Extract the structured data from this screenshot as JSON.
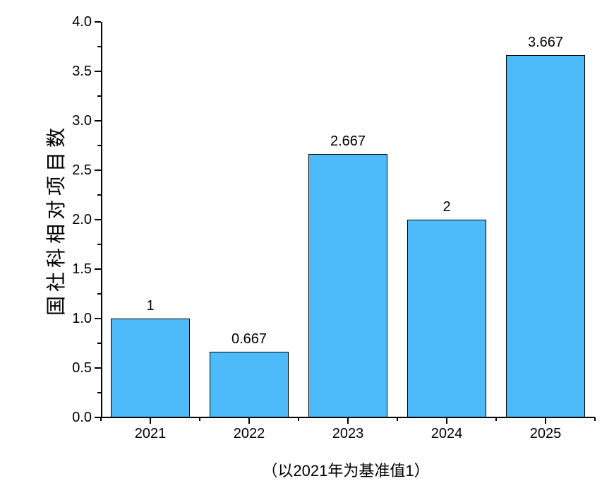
{
  "chart_data": {
    "type": "bar",
    "categories": [
      "2021",
      "2022",
      "2023",
      "2024",
      "2025"
    ],
    "values": [
      1,
      0.667,
      2.667,
      2,
      3.667
    ],
    "bar_labels": [
      "1",
      "0.667",
      "2.667",
      "2",
      "3.667"
    ],
    "title": "",
    "xlabel": "（以2021年为基准值1）",
    "ylabel": "国社科相对项目数",
    "ylim": [
      0,
      4
    ],
    "ytick_step": 0.5,
    "ytick_labels": [
      "0.0",
      "0.5",
      "1.0",
      "1.5",
      "2.0",
      "2.5",
      "3.0",
      "3.5",
      "4.0"
    ],
    "minor_tick_step": 0.25,
    "grid": "off",
    "legend": "none",
    "bar_color": "#4DBBFA",
    "bar_border_color": "#000000",
    "axis_color": "#000000",
    "text_color": "#000000",
    "background_color": "#FFFFFF"
  }
}
